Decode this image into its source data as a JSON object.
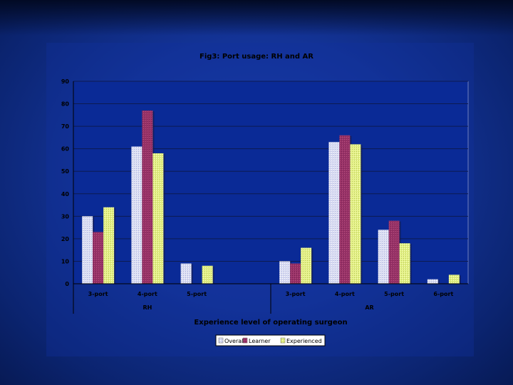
{
  "chart_data": {
    "type": "bar",
    "title": "Fig3: Port usage: RH and AR",
    "xlabel": "Experience level of operating surgeon",
    "ylabel": "",
    "ylim": [
      0,
      90
    ],
    "yticks": [
      0,
      10,
      20,
      30,
      40,
      50,
      60,
      70,
      80,
      90
    ],
    "grid": true,
    "legend": "bottom",
    "groups": [
      {
        "name": "RH",
        "categories": [
          "3-port",
          "4-port",
          "5-port"
        ]
      },
      {
        "name": "AR",
        "categories": [
          "3-port",
          "4-port",
          "5-port",
          "6-port"
        ]
      }
    ],
    "categories": [
      "3-port",
      "4-port",
      "5-port",
      "",
      "3-port",
      "4-port",
      "5-port",
      "6-port"
    ],
    "series": [
      {
        "name": "Overall",
        "color": "#e4e4f4",
        "values": [
          30,
          61,
          9,
          null,
          10,
          63,
          24,
          2
        ]
      },
      {
        "name": "Learner",
        "color": "#993366",
        "values": [
          23,
          77,
          null,
          null,
          9,
          66,
          28,
          null
        ]
      },
      {
        "name": "Experienced",
        "color": "#e6f28a",
        "values": [
          34,
          58,
          8,
          null,
          16,
          62,
          18,
          4
        ]
      }
    ]
  },
  "colors": {
    "plot_background": "#0a2a96",
    "gridline": "#0d1a50",
    "chart_area": "#11319d"
  }
}
